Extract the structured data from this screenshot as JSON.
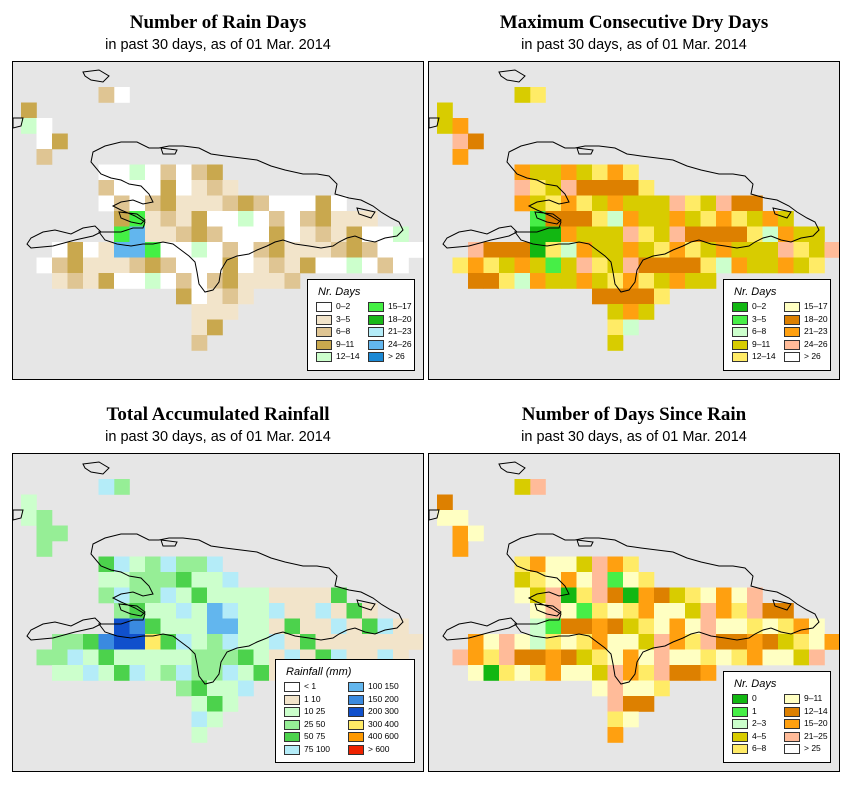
{
  "panels": [
    {
      "id": "rain-days",
      "title": "Number of Rain Days",
      "subtitle": "in past 30 days, as of  01 Mar. 2014",
      "legend_title": "Nr. Days",
      "legend": [
        {
          "label": "0–2",
          "color": "#ffffff"
        },
        {
          "label": "3–5",
          "color": "#f2e4ca"
        },
        {
          "label": "6–8",
          "color": "#dfc593"
        },
        {
          "label": "9–11",
          "color": "#c9a84e"
        },
        {
          "label": "12–14",
          "color": "#ccffcc"
        },
        {
          "label": "15–17",
          "color": "#44f044"
        },
        {
          "label": "18–20",
          "color": "#18b818"
        },
        {
          "label": "21–23",
          "color": "#b4ecf8"
        },
        {
          "label": "24–26",
          "color": "#62b6ee"
        },
        {
          "label": "> 26",
          "color": "#1a88d4"
        }
      ]
    },
    {
      "id": "max-dry-days",
      "title": "Maximum Consecutive Dry Days",
      "subtitle": "in past 30 days, as of  01 Mar. 2014",
      "legend_title": "Nr. Days",
      "legend": [
        {
          "label": "0–2",
          "color": "#12b712"
        },
        {
          "label": "3–5",
          "color": "#47ee47"
        },
        {
          "label": "6–8",
          "color": "#ccffcc"
        },
        {
          "label": "9–11",
          "color": "#d8cc00"
        },
        {
          "label": "12–14",
          "color": "#ffeb66"
        },
        {
          "label": "15–17",
          "color": "#ffffc2"
        },
        {
          "label": "18–20",
          "color": "#dd8000"
        },
        {
          "label": "21–23",
          "color": "#ffa010"
        },
        {
          "label": "24–26",
          "color": "#ffbb99"
        },
        {
          "label": "> 26",
          "color": "#ffffff"
        }
      ]
    },
    {
      "id": "total-rainfall",
      "title": "Total Accumulated Rainfall",
      "subtitle": "in past 30 days, as of  01 Mar. 2014",
      "legend_title": "Rainfall (mm)",
      "legend": [
        {
          "label": "< 1",
          "color": "#ffffff"
        },
        {
          "label": "1     10",
          "color": "#f2e4ca"
        },
        {
          "label": "10     25",
          "color": "#ccffcc"
        },
        {
          "label": "25     50",
          "color": "#96ee96"
        },
        {
          "label": "50     75",
          "color": "#4cd24c"
        },
        {
          "label": "75   100",
          "color": "#b4ecf8"
        },
        {
          "label": "100   150",
          "color": "#62b6ee"
        },
        {
          "label": "150   200",
          "color": "#3a8ae0"
        },
        {
          "label": "200   300",
          "color": "#1050cc"
        },
        {
          "label": "300   400",
          "color": "#ffeb66"
        },
        {
          "label": "400   600",
          "color": "#ff9900"
        },
        {
          "label": "> 600",
          "color": "#ee2200"
        }
      ]
    },
    {
      "id": "days-since-rain",
      "title": "Number of Days Since Rain",
      "subtitle": "in past 30 days, as of  01 Mar. 2014",
      "legend_title": "Nr. Days",
      "legend": [
        {
          "label": "0",
          "color": "#12b712"
        },
        {
          "label": "1",
          "color": "#47ee47"
        },
        {
          "label": "2–3",
          "color": "#ccffcc"
        },
        {
          "label": "4–5",
          "color": "#d8cc00"
        },
        {
          "label": "6–8",
          "color": "#ffeb66"
        },
        {
          "label": "9–11",
          "color": "#ffffc2"
        },
        {
          "label": "12–14",
          "color": "#dd8000"
        },
        {
          "label": "15–20",
          "color": "#ffa010"
        },
        {
          "label": "21–25",
          "color": "#ffbb99"
        },
        {
          "label": "> 25",
          "color": "#ffffff"
        }
      ]
    }
  ]
}
